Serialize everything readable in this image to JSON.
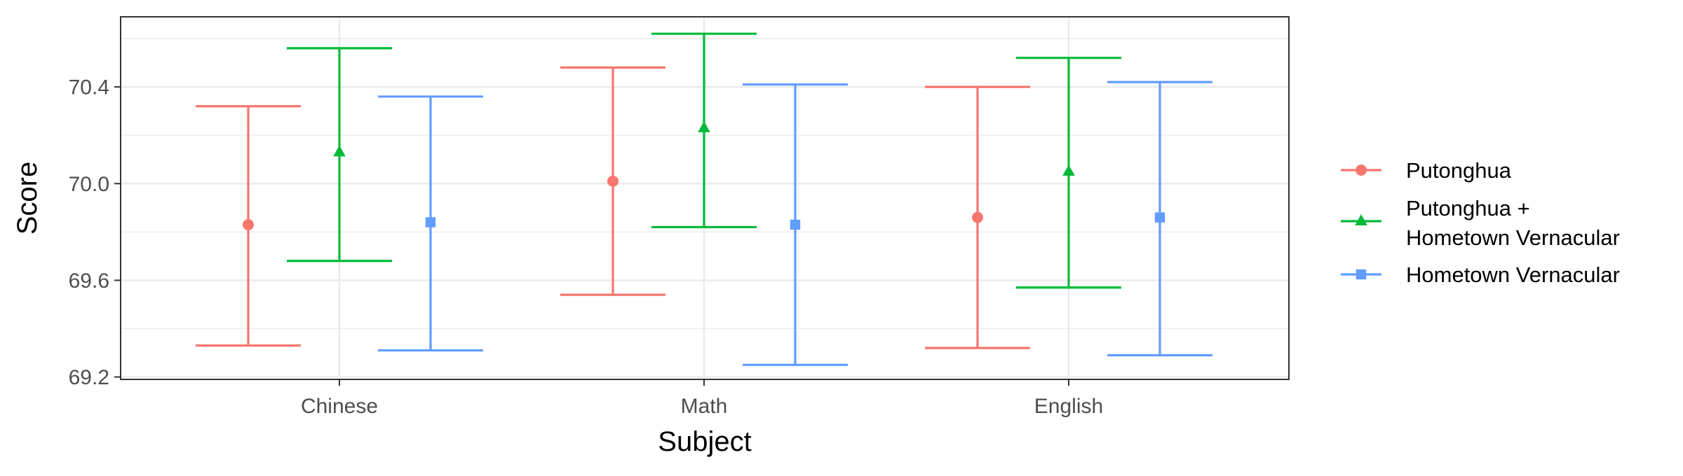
{
  "chart_data": {
    "type": "errorbar",
    "title": "",
    "xlabel": "Subject",
    "ylabel": "Score",
    "categories": [
      "Chinese",
      "Math",
      "English"
    ],
    "ylim": [
      69.19,
      70.69
    ],
    "yticks": [
      69.2,
      69.6,
      70.0,
      70.4
    ],
    "ytick_labels": [
      "69.2",
      "69.6",
      "70.0",
      "70.4"
    ],
    "grid": true,
    "legend_position": "right",
    "series": [
      {
        "name": "Putonghua",
        "legend_lines": [
          "Putonghua"
        ],
        "color": "#F8766D",
        "marker": "circle",
        "mean": [
          69.83,
          70.01,
          69.86
        ],
        "lower": [
          69.33,
          69.54,
          69.32
        ],
        "upper": [
          70.32,
          70.48,
          70.4
        ]
      },
      {
        "name": "Putonghua + Hometown Vernacular",
        "legend_lines": [
          "Putonghua +",
          "Hometown Vernacular"
        ],
        "color": "#00BA38",
        "marker": "triangle",
        "mean": [
          70.13,
          70.23,
          70.05
        ],
        "lower": [
          69.68,
          69.82,
          69.57
        ],
        "upper": [
          70.56,
          70.62,
          70.52
        ]
      },
      {
        "name": "Hometown Vernacular",
        "legend_lines": [
          "Hometown Vernacular"
        ],
        "color": "#619CFF",
        "marker": "square",
        "mean": [
          69.84,
          69.83,
          69.86
        ],
        "lower": [
          69.31,
          69.25,
          69.29
        ],
        "upper": [
          70.36,
          70.41,
          70.42
        ]
      }
    ]
  }
}
